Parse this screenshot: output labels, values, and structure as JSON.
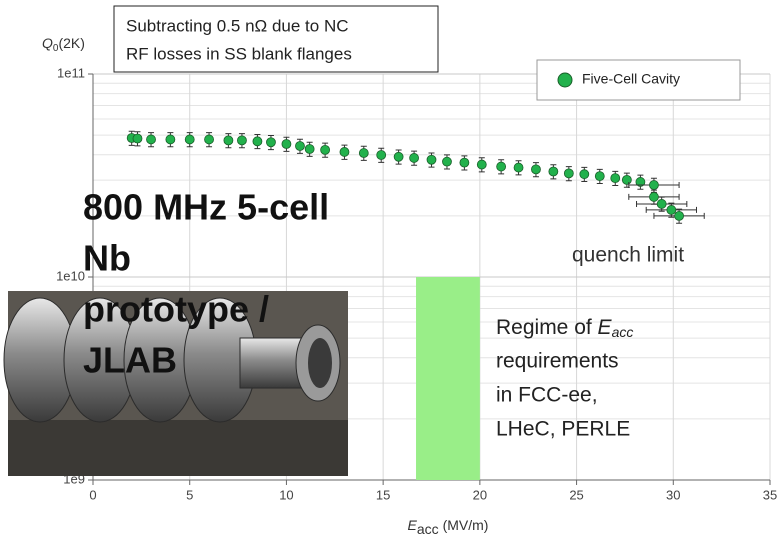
{
  "chart_data": {
    "type": "scatter",
    "y_label": [
      "Q",
      "0",
      "(2K)"
    ],
    "x_label": [
      "E",
      "acc",
      " (MV/m)"
    ],
    "log_y": true,
    "grid": true,
    "minor_grid": true,
    "legend": "upper right",
    "xlim": [
      0,
      35
    ],
    "xticks": [
      0,
      5,
      10,
      15,
      20,
      25,
      30,
      35
    ],
    "ylim": [
      1000000000,
      100000000000
    ],
    "yticks": [
      {
        "value": 1000000000,
        "label": "1e9"
      },
      {
        "value": 10000000000,
        "label": "1e10"
      },
      {
        "value": 100000000000,
        "label": "1e11"
      }
    ],
    "series": [
      {
        "name": "Five-Cell Cavity",
        "color": "#22b14c",
        "x": [
          2.0,
          2.3,
          3,
          4,
          5,
          6,
          7,
          7.7,
          8.5,
          9.2,
          10,
          10.7,
          11.2,
          12,
          13,
          14,
          14.9,
          15.8,
          16.6,
          17.5,
          18.3,
          19.2,
          20.1,
          21.1,
          22,
          22.9,
          23.8,
          24.6,
          25.4,
          26.2,
          27,
          27.6,
          28.3,
          29,
          29,
          29.4,
          29.9,
          30.3
        ],
        "y": [
          48400000000,
          48100000000,
          47600000000,
          47600000000,
          47600000000,
          47600000000,
          47100000000,
          47100000000,
          46600000000,
          46100000000,
          45200000000,
          44200000000,
          42700000000,
          42300000000,
          41300000000,
          40800000000,
          39900000000,
          39100000000,
          38600000000,
          37800000000,
          37000000000,
          36600000000,
          35800000000,
          35000000000,
          34600000000,
          33900000000,
          33100000000,
          32400000000,
          32100000000,
          31400000000,
          30700000000,
          30100000000,
          29400000000,
          28400000000,
          24800000000,
          22900000000,
          21400000000,
          20000000000
        ],
        "yerr_rel": 0.08,
        "xerr": [
          null,
          null,
          null,
          null,
          null,
          null,
          null,
          null,
          null,
          null,
          null,
          null,
          null,
          null,
          null,
          null,
          null,
          null,
          null,
          null,
          null,
          null,
          null,
          null,
          null,
          null,
          null,
          null,
          null,
          null,
          null,
          null,
          null,
          1.3,
          1.3,
          1.3,
          1.3,
          1.3
        ]
      }
    ],
    "band": {
      "x": [
        16.7,
        20
      ],
      "y": [
        1000000000,
        10000000000
      ],
      "color": "#99ee88"
    },
    "annotations": {
      "note": [
        "Subtracting 0.5 nΩ due to NC",
        "RF losses in SS blank flanges"
      ],
      "quench": "quench limit",
      "photo_caption": [
        "800 MHz 5-cell",
        "Nb",
        "prototype /",
        "JLAB"
      ],
      "regime": [
        "Regime of ",
        "E",
        "acc",
        "requirements",
        "in FCC-ee,",
        "LHeC, PERLE"
      ]
    }
  }
}
